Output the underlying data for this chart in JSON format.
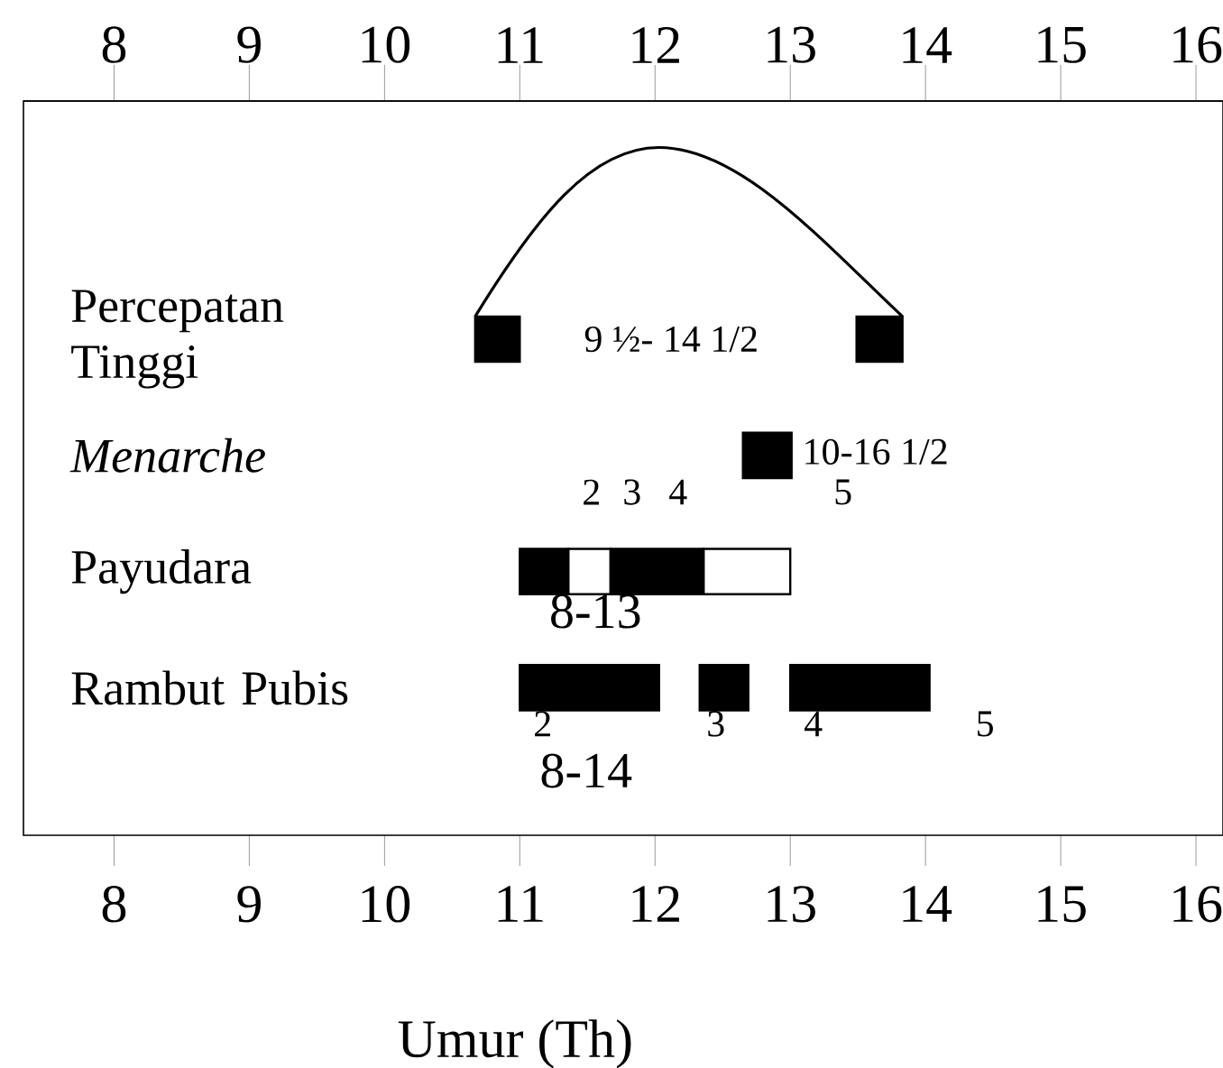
{
  "chart_data": {
    "type": "bar",
    "orientation": "horizontal",
    "xlabel": "Umur (Th)",
    "categories": [
      "Percepatan Tinggi",
      "Menarche",
      "Payudara",
      "Rambut Pubis"
    ],
    "xlim": [
      7.33,
      16.2
    ],
    "xticks": [
      8,
      9,
      10,
      11,
      12,
      13,
      14,
      15,
      16
    ],
    "x2lim": [
      7.33,
      16.2
    ],
    "x2ticks": [
      8,
      9,
      10,
      11,
      12,
      13,
      14,
      15,
      16
    ],
    "series": [
      {
        "color": "#000000",
        "base": [
          10.67,
          12.65,
          11.0,
          11.0
        ],
        "values": [
          0.33,
          0.36,
          0.36,
          1.03
        ]
      },
      {
        "color": "#000000",
        "base": [
          13.49,
          null,
          11.67,
          12.33
        ],
        "values": [
          0.34,
          null,
          0.69,
          0.36
        ]
      },
      {
        "color": "#000000",
        "base": [
          null,
          null,
          null,
          13.0
        ],
        "values": [
          null,
          null,
          null,
          1.03
        ]
      },
      {
        "color": "#ffffff",
        "base": [
          null,
          null,
          11.36,
          null
        ],
        "values": [
          null,
          null,
          0.31,
          null
        ]
      },
      {
        "color": "#ffffff",
        "base": [
          null,
          null,
          12.36,
          null
        ],
        "values": [
          null,
          null,
          0.64,
          null
        ]
      }
    ],
    "annotations": [
      "9 ½- 14 1/2",
      "10-16 1/2",
      "2",
      "3",
      "4",
      "5",
      "8-13",
      "2",
      "3",
      "4",
      "5",
      "8-14"
    ]
  }
}
